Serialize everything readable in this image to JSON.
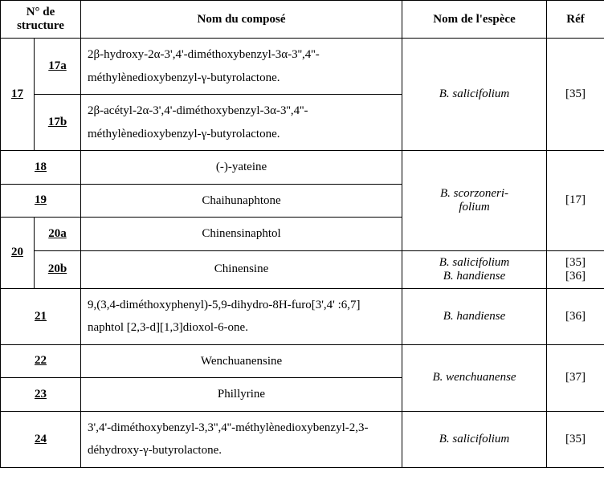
{
  "headers": {
    "structure": "N° de structure",
    "compound": "Nom du composé",
    "species": "Nom de l'espèce",
    "ref": "Réf"
  },
  "rows": {
    "r17": {
      "num": "17"
    },
    "r17a": {
      "num": "17a",
      "compound": "2β-hydroxy-2α-3',4'-diméthoxybenzyl-3α-3'',4''-méthylènedioxybenzyl-γ-butyrolactone."
    },
    "r17b": {
      "num": "17b",
      "compound": "2β-acétyl-2α-3',4'-diméthoxybenzyl-3α-3'',4''-méthylènedioxybenzyl-γ-butyrolactone."
    },
    "r17species": "B. salicifolium",
    "r17ref": "[35]",
    "r18": {
      "num": "18",
      "compound": "(-)-yateine"
    },
    "r19": {
      "num": "19",
      "compound": "Chaihunaphtone"
    },
    "r18_19_species_l1": "B. scorzoneri-",
    "r18_19_species_l2": "folium",
    "r18_19_ref": "[17]",
    "r20": {
      "num": "20"
    },
    "r20a": {
      "num": "20a",
      "compound": "Chinensinaphtol"
    },
    "r20b": {
      "num": "20b",
      "compound": "Chinensine"
    },
    "r20b_species_l1": "B. salicifolium",
    "r20b_species_l2": "B. handiense",
    "r20b_ref_l1": "[35]",
    "r20b_ref_l2": "[36]",
    "r21": {
      "num": "21",
      "compound": "9,(3,4-diméthoxyphenyl)-5,9-dihydro-8H-furo[3',4' :6,7] naphtol [2,3-d][1,3]dioxol-6-one."
    },
    "r21_species": "B. handiense",
    "r21_ref": "[36]",
    "r22": {
      "num": "22",
      "compound": "Wenchuanensine"
    },
    "r23": {
      "num": "23",
      "compound": "Phillyrine"
    },
    "r22_23_species": "B. wenchuanense",
    "r22_23_ref": "[37]",
    "r24": {
      "num": "24",
      "compound": "3',4'-diméthoxybenzyl-3,3'',4''-méthylènedioxybenzyl-2,3-déhydroxy-γ-butyrolactone."
    },
    "r24_species": "B. salicifolium",
    "r24_ref": "[35]"
  }
}
